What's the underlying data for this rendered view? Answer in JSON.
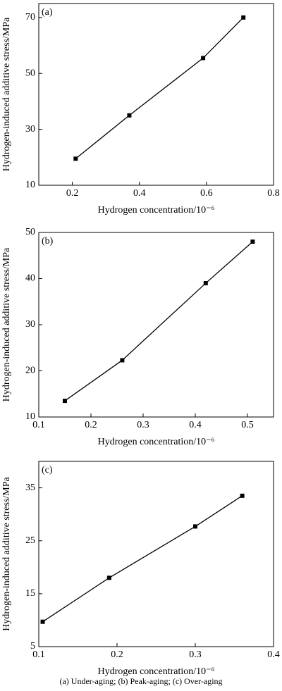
{
  "chart_data": [
    {
      "type": "line",
      "panel_label": "(a)",
      "xlabel": "Hydrogen concentration/10⁻⁶",
      "ylabel": "Hydrogen-induced additive stress/MPa",
      "x": [
        0.21,
        0.37,
        0.59,
        0.71
      ],
      "values": [
        19.5,
        35,
        55.5,
        70
      ],
      "color": "#000000",
      "xlim": [
        0.1,
        0.8
      ],
      "ylim": [
        10,
        75
      ],
      "xticks": [
        0.2,
        0.4,
        0.6,
        0.8
      ],
      "yticks": [
        10,
        30,
        50,
        70
      ]
    },
    {
      "type": "line",
      "panel_label": "(b)",
      "xlabel": "Hydrogen concentration/10⁻⁶",
      "ylabel": "Hydrogen-induced additive stress/MPa",
      "x": [
        0.15,
        0.26,
        0.42,
        0.51
      ],
      "values": [
        13.5,
        22.3,
        39,
        48
      ],
      "color": "#000000",
      "xlim": [
        0.1,
        0.55
      ],
      "ylim": [
        10,
        50
      ],
      "xticks": [
        0.1,
        0.2,
        0.3,
        0.4,
        0.5
      ],
      "yticks": [
        10,
        20,
        30,
        40,
        50
      ]
    },
    {
      "type": "line",
      "panel_label": "(c)",
      "xlabel": "Hydrogen concentration/10⁻⁶",
      "ylabel": "Hydrogen-induced additive stress/MPa",
      "x": [
        0.105,
        0.19,
        0.3,
        0.36
      ],
      "values": [
        9.7,
        18,
        27.7,
        33.5
      ],
      "color": "#000000",
      "xlim": [
        0.1,
        0.4
      ],
      "ylim": [
        5,
        40
      ],
      "xticks": [
        0.1,
        0.2,
        0.3,
        0.4
      ],
      "yticks": [
        5,
        15,
        25,
        35
      ]
    }
  ],
  "caption": "(a) Under-aging; (b) Peak-aging; (c) Over-aging"
}
